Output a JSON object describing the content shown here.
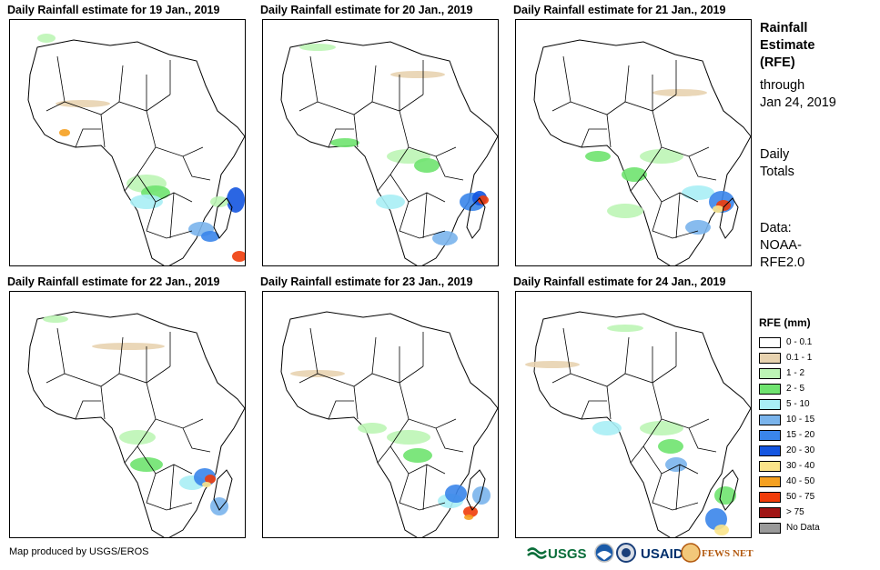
{
  "panels": [
    {
      "title": "Daily Rainfall estimate for 19 Jan., 2019"
    },
    {
      "title": "Daily Rainfall estimate for 20 Jan., 2019"
    },
    {
      "title": "Daily Rainfall estimate for 21 Jan., 2019"
    },
    {
      "title": "Daily Rainfall estimate for 22 Jan., 2019"
    },
    {
      "title": "Daily Rainfall estimate for 23 Jan., 2019"
    },
    {
      "title": "Daily Rainfall estimate for 24 Jan., 2019"
    }
  ],
  "sidebar": {
    "title_lines": [
      "Rainfall",
      "Estimate",
      "(RFE)"
    ],
    "through_lines": [
      "through",
      "Jan 24, 2019"
    ],
    "totals_lines": [
      "Daily",
      "Totals"
    ],
    "data_lines": [
      "Data:",
      "NOAA-",
      "RFE2.0"
    ]
  },
  "legend": {
    "title": "RFE (mm)",
    "items": [
      {
        "label": "0 - 0.1",
        "color": "#ffffff"
      },
      {
        "label": "0.1 - 1",
        "color": "#e8d3b0"
      },
      {
        "label": "1 - 2",
        "color": "#bdf5b5"
      },
      {
        "label": "2 - 5",
        "color": "#6fe36f"
      },
      {
        "label": "5 - 10",
        "color": "#a9eef5"
      },
      {
        "label": "10 - 15",
        "color": "#7ab4ec"
      },
      {
        "label": "15 - 20",
        "color": "#3a85ea"
      },
      {
        "label": "20 - 30",
        "color": "#1455e0"
      },
      {
        "label": "30 - 40",
        "color": "#fbe48a"
      },
      {
        "label": "40 - 50",
        "color": "#f5a020"
      },
      {
        "label": "50 - 75",
        "color": "#f03c0a"
      },
      {
        "label": "> 75",
        "color": "#a01414"
      },
      {
        "label": "No Data",
        "color": "#9a9a9a"
      }
    ]
  },
  "footer": {
    "credit": "Map produced by USGS/EROS",
    "logos": [
      "USGS",
      "USAID",
      "FEWS NET"
    ]
  }
}
